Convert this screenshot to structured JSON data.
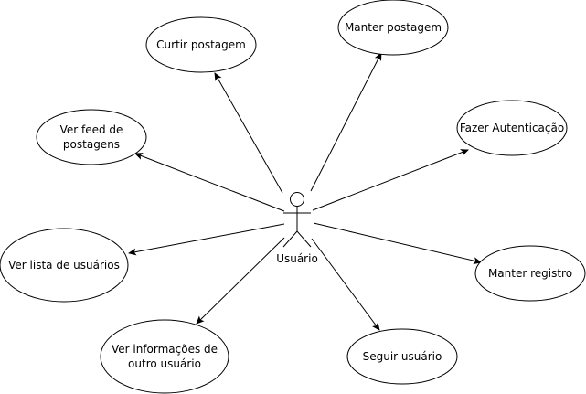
{
  "actor": {
    "label": "Usuário"
  },
  "use_cases": [
    {
      "id": "curtir-postagem",
      "lines": [
        "Curtir postagem"
      ]
    },
    {
      "id": "manter-postagem",
      "lines": [
        "Manter postagem"
      ]
    },
    {
      "id": "ver-feed",
      "lines": [
        "Ver feed de",
        "postagens"
      ]
    },
    {
      "id": "fazer-autenticacao",
      "lines": [
        "Fazer Autenticação"
      ]
    },
    {
      "id": "ver-lista-usuarios",
      "lines": [
        "Ver lista de usuários"
      ]
    },
    {
      "id": "manter-registro",
      "lines": [
        "Manter registro"
      ]
    },
    {
      "id": "ver-informacoes",
      "lines": [
        "Ver informações de",
        "outro usuário"
      ]
    },
    {
      "id": "seguir-usuario",
      "lines": [
        "Seguir usuário"
      ]
    }
  ]
}
